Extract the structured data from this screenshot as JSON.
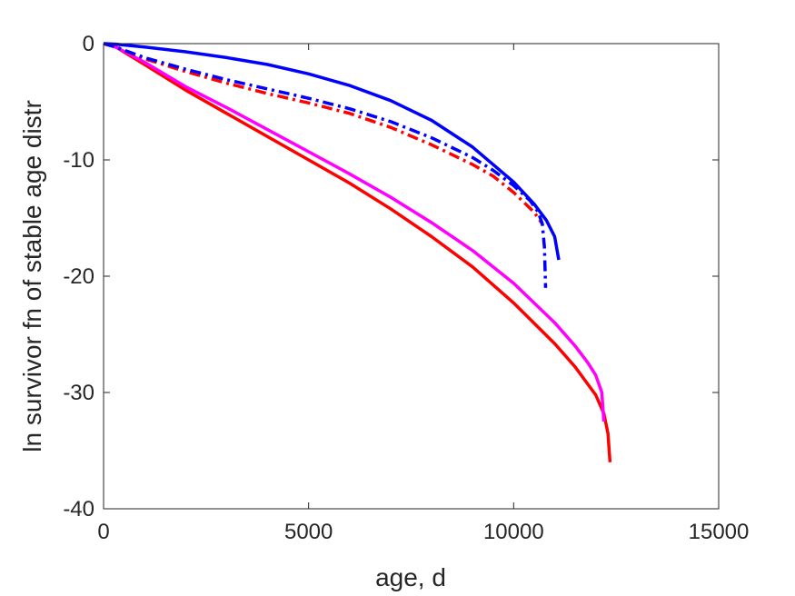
{
  "chart_data": {
    "type": "line",
    "title": "",
    "xlabel": "age, d",
    "ylabel": "ln survivor fn of stable age distr",
    "xlim": [
      0,
      15000
    ],
    "ylim": [
      -40,
      0
    ],
    "xticks": [
      0,
      5000,
      10000,
      15000
    ],
    "yticks": [
      -40,
      -30,
      -20,
      -10,
      0
    ],
    "grid": false,
    "legend": "none",
    "series": [
      {
        "color": "#ff0000",
        "style": "solid",
        "x": [
          0,
          300,
          1000,
          2000,
          3000,
          4000,
          5000,
          6000,
          7000,
          8000,
          9000,
          10000,
          11000,
          11500,
          12000,
          12200,
          12300,
          12350
        ],
        "y": [
          0,
          -0.3,
          -1.8,
          -4.0,
          -6.0,
          -8.0,
          -10.0,
          -12.0,
          -14.2,
          -16.6,
          -19.2,
          -22.3,
          -25.8,
          -27.8,
          -30.2,
          -31.8,
          -33.5,
          -36.0
        ]
      },
      {
        "color": "#ff00ff",
        "style": "solid",
        "x": [
          0,
          300,
          1000,
          2000,
          3000,
          4000,
          5000,
          6000,
          7000,
          8000,
          9000,
          10000,
          11000,
          11500,
          11800,
          12000,
          12150,
          12200
        ],
        "y": [
          0,
          -0.3,
          -1.6,
          -3.7,
          -5.5,
          -7.4,
          -9.3,
          -11.2,
          -13.2,
          -15.4,
          -17.8,
          -20.6,
          -24.0,
          -26.0,
          -27.4,
          -28.5,
          -30.0,
          -32.5
        ]
      },
      {
        "color": "#ff0000",
        "style": "dashdot",
        "x": [
          0,
          300,
          1000,
          2000,
          3000,
          4000,
          5000,
          6000,
          7000,
          8000,
          9000,
          9500,
          10000,
          10500,
          10700
        ],
        "y": [
          0,
          -0.3,
          -1.3,
          -2.4,
          -3.4,
          -4.3,
          -5.1,
          -6.0,
          -7.2,
          -8.7,
          -10.4,
          -11.4,
          -12.8,
          -14.5,
          -15.5
        ]
      },
      {
        "color": "#0000ff",
        "style": "dashdot",
        "x": [
          0,
          300,
          1000,
          2000,
          3000,
          4000,
          5000,
          6000,
          7000,
          8000,
          9000,
          9500,
          10000,
          10400,
          10600,
          10700,
          10750,
          10780
        ],
        "y": [
          0,
          -0.3,
          -1.2,
          -2.2,
          -3.1,
          -3.9,
          -4.7,
          -5.6,
          -6.7,
          -8.1,
          -9.8,
          -10.9,
          -12.2,
          -13.5,
          -14.5,
          -15.5,
          -17.5,
          -21.0
        ]
      },
      {
        "color": "#0000ff",
        "style": "solid",
        "x": [
          0,
          300,
          1000,
          2000,
          3000,
          4000,
          5000,
          6000,
          7000,
          8000,
          9000,
          10000,
          10500,
          10800,
          11000,
          11100
        ],
        "y": [
          0,
          -0.05,
          -0.3,
          -0.7,
          -1.2,
          -1.8,
          -2.6,
          -3.6,
          -4.9,
          -6.6,
          -8.9,
          -11.9,
          -13.8,
          -15.2,
          -16.6,
          -18.6
        ]
      }
    ]
  }
}
